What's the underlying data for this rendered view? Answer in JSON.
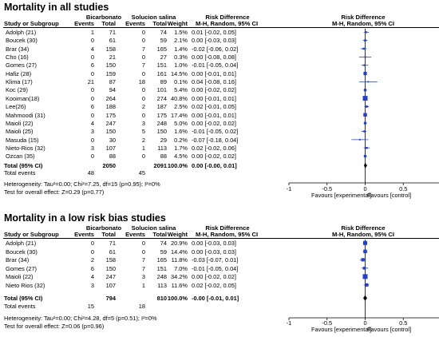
{
  "panels": [
    {
      "title": "Mortality in all studies",
      "group1": "Bicarbonato",
      "group2": "Solucion salina",
      "col_study": "Study or Subgroup",
      "col_events1": "Events",
      "col_total1": "Total",
      "col_events2": "Events",
      "col_total2": "Total",
      "col_weight": "Weight",
      "col_rd": "Risk Difference",
      "col_rd_sub": "M-H, Random, 95% CI",
      "rows": [
        {
          "study": "Adolph (21)",
          "e1": "1",
          "t1": "71",
          "e2": "0",
          "t2": "74",
          "w": "1.5%",
          "ci": "0.01 [-0.02, 0.05]"
        },
        {
          "study": "Boucek (30)",
          "e1": "0",
          "t1": "61",
          "e2": "0",
          "t2": "59",
          "w": "2.1%",
          "ci": "0.00 [-0.03, 0.03]"
        },
        {
          "study": "Brar (34)",
          "e1": "4",
          "t1": "158",
          "e2": "7",
          "t2": "165",
          "w": "1.4%",
          "ci": "-0.02 [-0.06, 0.02]"
        },
        {
          "study": "Cho (16)",
          "e1": "0",
          "t1": "21",
          "e2": "0",
          "t2": "27",
          "w": "0.3%",
          "ci": "0.00 [-0.08, 0.08]"
        },
        {
          "study": "Gomes (27)",
          "e1": "6",
          "t1": "150",
          "e2": "7",
          "t2": "151",
          "w": "1.0%",
          "ci": "-0.01 [-0.05, 0.04]"
        },
        {
          "study": "Hafiz (28)",
          "e1": "0",
          "t1": "159",
          "e2": "0",
          "t2": "161",
          "w": "14.5%",
          "ci": "0.00 [-0.01, 0.01]"
        },
        {
          "study": "Klima (17)",
          "e1": "21",
          "t1": "87",
          "e2": "18",
          "t2": "89",
          "w": "0.1%",
          "ci": "0.04 [-0.08, 0.16]"
        },
        {
          "study": "Koc (29)",
          "e1": "0",
          "t1": "94",
          "e2": "0",
          "t2": "101",
          "w": "5.4%",
          "ci": "0.00 [-0.02, 0.02]"
        },
        {
          "study": "Kooiman(18)",
          "e1": "0",
          "t1": "264",
          "e2": "0",
          "t2": "274",
          "w": "40.8%",
          "ci": "0.00 [-0.01, 0.01]"
        },
        {
          "study": "Lee(26)",
          "e1": "6",
          "t1": "188",
          "e2": "2",
          "t2": "187",
          "w": "2.5%",
          "ci": "0.02 [-0.01, 0.05]"
        },
        {
          "study": "Mahmoodi (31)",
          "e1": "0",
          "t1": "175",
          "e2": "0",
          "t2": "175",
          "w": "17.4%",
          "ci": "0.00 [-0.01, 0.01]"
        },
        {
          "study": "Maioli (22)",
          "e1": "4",
          "t1": "247",
          "e2": "3",
          "t2": "248",
          "w": "5.0%",
          "ci": "0.00 [-0.02, 0.02]"
        },
        {
          "study": "Maioli (25)",
          "e1": "3",
          "t1": "150",
          "e2": "5",
          "t2": "150",
          "w": "1.6%",
          "ci": "-0.01 [-0.05, 0.02]"
        },
        {
          "study": "Masuda (15)",
          "e1": "0",
          "t1": "30",
          "e2": "2",
          "t2": "29",
          "w": "0.2%",
          "ci": "-0.07 [-0.18, 0.04]"
        },
        {
          "study": "Nieto-Rios (32)",
          "e1": "3",
          "t1": "107",
          "e2": "1",
          "t2": "113",
          "w": "1.7%",
          "ci": "0.02 [-0.02, 0.06]"
        },
        {
          "study": "Ozcan (35)",
          "e1": "0",
          "t1": "88",
          "e2": "0",
          "t2": "88",
          "w": "4.5%",
          "ci": "0.00 [-0.02, 0.02]"
        }
      ],
      "total_label": "Total (95% CI)",
      "total_t1": "2050",
      "total_t2": "2091",
      "total_w": "100.0%",
      "total_ci": "0.00 [-0.00, 0.01]",
      "events_label": "Total events",
      "events_e1": "48",
      "events_e2": "45",
      "heterogeneity": "Heterogeneity: Tau²=0.00; Chi²=7.25, df=15 (p=0.95); I²=0%",
      "overall": "Test for overall effect: Z=0.29 (p=0.77)",
      "favours_left": "Favours [experimental]",
      "favours_right": "Favours [control]"
    },
    {
      "title": "Mortality in a low risk bias studies",
      "group1": "Bicarbonato",
      "group2": "Solucion salina",
      "col_study": "Study or Subgroup",
      "col_events1": "Events",
      "col_total1": "Total",
      "col_events2": "Events",
      "col_total2": "Total",
      "col_weight": "Weight",
      "col_rd": "Risk Difference",
      "col_rd_sub": "M-H, Random, 95% CI",
      "rows": [
        {
          "study": "Adolph (21)",
          "e1": "0",
          "t1": "71",
          "e2": "0",
          "t2": "74",
          "w": "20.9%",
          "ci": "0.00 [-0.03, 0.03]"
        },
        {
          "study": "Boucek (30)",
          "e1": "0",
          "t1": "61",
          "e2": "0",
          "t2": "59",
          "w": "14.4%",
          "ci": "0.00 [-0.03, 0.03]"
        },
        {
          "study": "Brar (34)",
          "e1": "2",
          "t1": "158",
          "e2": "7",
          "t2": "165",
          "w": "11.8%",
          "ci": "-0.03 [-0.07, 0.01]"
        },
        {
          "study": "Gomes (27)",
          "e1": "6",
          "t1": "150",
          "e2": "7",
          "t2": "151",
          "w": "7.0%",
          "ci": "-0.01 [-0.05, 0.04]"
        },
        {
          "study": "Maioli (22)",
          "e1": "4",
          "t1": "247",
          "e2": "3",
          "t2": "248",
          "w": "34.2%",
          "ci": "0.00 [-0.02, 0.02]"
        },
        {
          "study": "Nieto Rios (32)",
          "e1": "3",
          "t1": "107",
          "e2": "1",
          "t2": "113",
          "w": "11.6%",
          "ci": "0.02 [-0.02, 0.05]"
        }
      ],
      "total_label": "Total (95% CI)",
      "total_t1": "794",
      "total_t2": "810",
      "total_w": "100.0%",
      "total_ci": "-0.00 [-0.01, 0.01]",
      "events_label": "Total events",
      "events_e1": "15",
      "events_e2": "18",
      "heterogeneity": "Heterogeneity: Tau²=0.00; Chi²=4.28, df=5 (p=0.51); I²=0%",
      "overall": "Test for overall effect: Z=0.06 (p=0.96)",
      "favours_left": "Favours [experimental]",
      "favours_right": "Favours [control]"
    }
  ],
  "chart_data": [
    {
      "type": "forest",
      "title": "Mortality in all studies",
      "xlim": [
        -1,
        1
      ],
      "ticks": [
        -1,
        -0.5,
        0,
        0.5,
        1
      ],
      "tick_labels": [
        "-1",
        "-0.5",
        "0",
        "0.5",
        "1"
      ],
      "studies": [
        {
          "name": "Adolph (21)",
          "est": 0.01,
          "lo": -0.02,
          "hi": 0.05,
          "weight": 1.5
        },
        {
          "name": "Boucek (30)",
          "est": 0.0,
          "lo": -0.03,
          "hi": 0.03,
          "weight": 2.1
        },
        {
          "name": "Brar (34)",
          "est": -0.02,
          "lo": -0.06,
          "hi": 0.02,
          "weight": 1.4
        },
        {
          "name": "Cho (16)",
          "est": 0.0,
          "lo": -0.08,
          "hi": 0.08,
          "weight": 0.3
        },
        {
          "name": "Gomes (27)",
          "est": -0.01,
          "lo": -0.05,
          "hi": 0.04,
          "weight": 1.0
        },
        {
          "name": "Hafiz (28)",
          "est": 0.0,
          "lo": -0.01,
          "hi": 0.01,
          "weight": 14.5
        },
        {
          "name": "Klima (17)",
          "est": 0.04,
          "lo": -0.08,
          "hi": 0.16,
          "weight": 0.1
        },
        {
          "name": "Koc (29)",
          "est": 0.0,
          "lo": -0.02,
          "hi": 0.02,
          "weight": 5.4
        },
        {
          "name": "Kooiman(18)",
          "est": 0.0,
          "lo": -0.01,
          "hi": 0.01,
          "weight": 40.8
        },
        {
          "name": "Lee(26)",
          "est": 0.02,
          "lo": -0.01,
          "hi": 0.05,
          "weight": 2.5
        },
        {
          "name": "Mahmoodi (31)",
          "est": 0.0,
          "lo": -0.01,
          "hi": 0.01,
          "weight": 17.4
        },
        {
          "name": "Maioli (22)",
          "est": 0.0,
          "lo": -0.02,
          "hi": 0.02,
          "weight": 5.0
        },
        {
          "name": "Maioli (25)",
          "est": -0.01,
          "lo": -0.05,
          "hi": 0.02,
          "weight": 1.6
        },
        {
          "name": "Masuda (15)",
          "est": -0.07,
          "lo": -0.18,
          "hi": 0.04,
          "weight": 0.2
        },
        {
          "name": "Nieto-Rios (32)",
          "est": 0.02,
          "lo": -0.02,
          "hi": 0.06,
          "weight": 1.7
        },
        {
          "name": "Ozcan (35)",
          "est": 0.0,
          "lo": -0.02,
          "hi": 0.02,
          "weight": 4.5
        }
      ],
      "pooled": {
        "est": 0.0,
        "lo": -0.0,
        "hi": 0.01
      }
    },
    {
      "type": "forest",
      "title": "Mortality in a low risk bias studies",
      "xlim": [
        -1,
        1
      ],
      "ticks": [
        -1,
        -0.5,
        0,
        0.5,
        1
      ],
      "tick_labels": [
        "-1",
        "-0.5",
        "0",
        "0.5",
        "1"
      ],
      "studies": [
        {
          "name": "Adolph (21)",
          "est": 0.0,
          "lo": -0.03,
          "hi": 0.03,
          "weight": 20.9
        },
        {
          "name": "Boucek (30)",
          "est": 0.0,
          "lo": -0.03,
          "hi": 0.03,
          "weight": 14.4
        },
        {
          "name": "Brar (34)",
          "est": -0.03,
          "lo": -0.07,
          "hi": 0.01,
          "weight": 11.8
        },
        {
          "name": "Gomes (27)",
          "est": -0.01,
          "lo": -0.05,
          "hi": 0.04,
          "weight": 7.0
        },
        {
          "name": "Maioli (22)",
          "est": 0.0,
          "lo": -0.02,
          "hi": 0.02,
          "weight": 34.2
        },
        {
          "name": "Nieto Rios (32)",
          "est": 0.02,
          "lo": -0.02,
          "hi": 0.05,
          "weight": 11.6
        }
      ],
      "pooled": {
        "est": -0.0,
        "lo": -0.01,
        "hi": 0.01
      }
    }
  ],
  "colors": {
    "marker": "#1f3fd6",
    "text": "#000000"
  }
}
